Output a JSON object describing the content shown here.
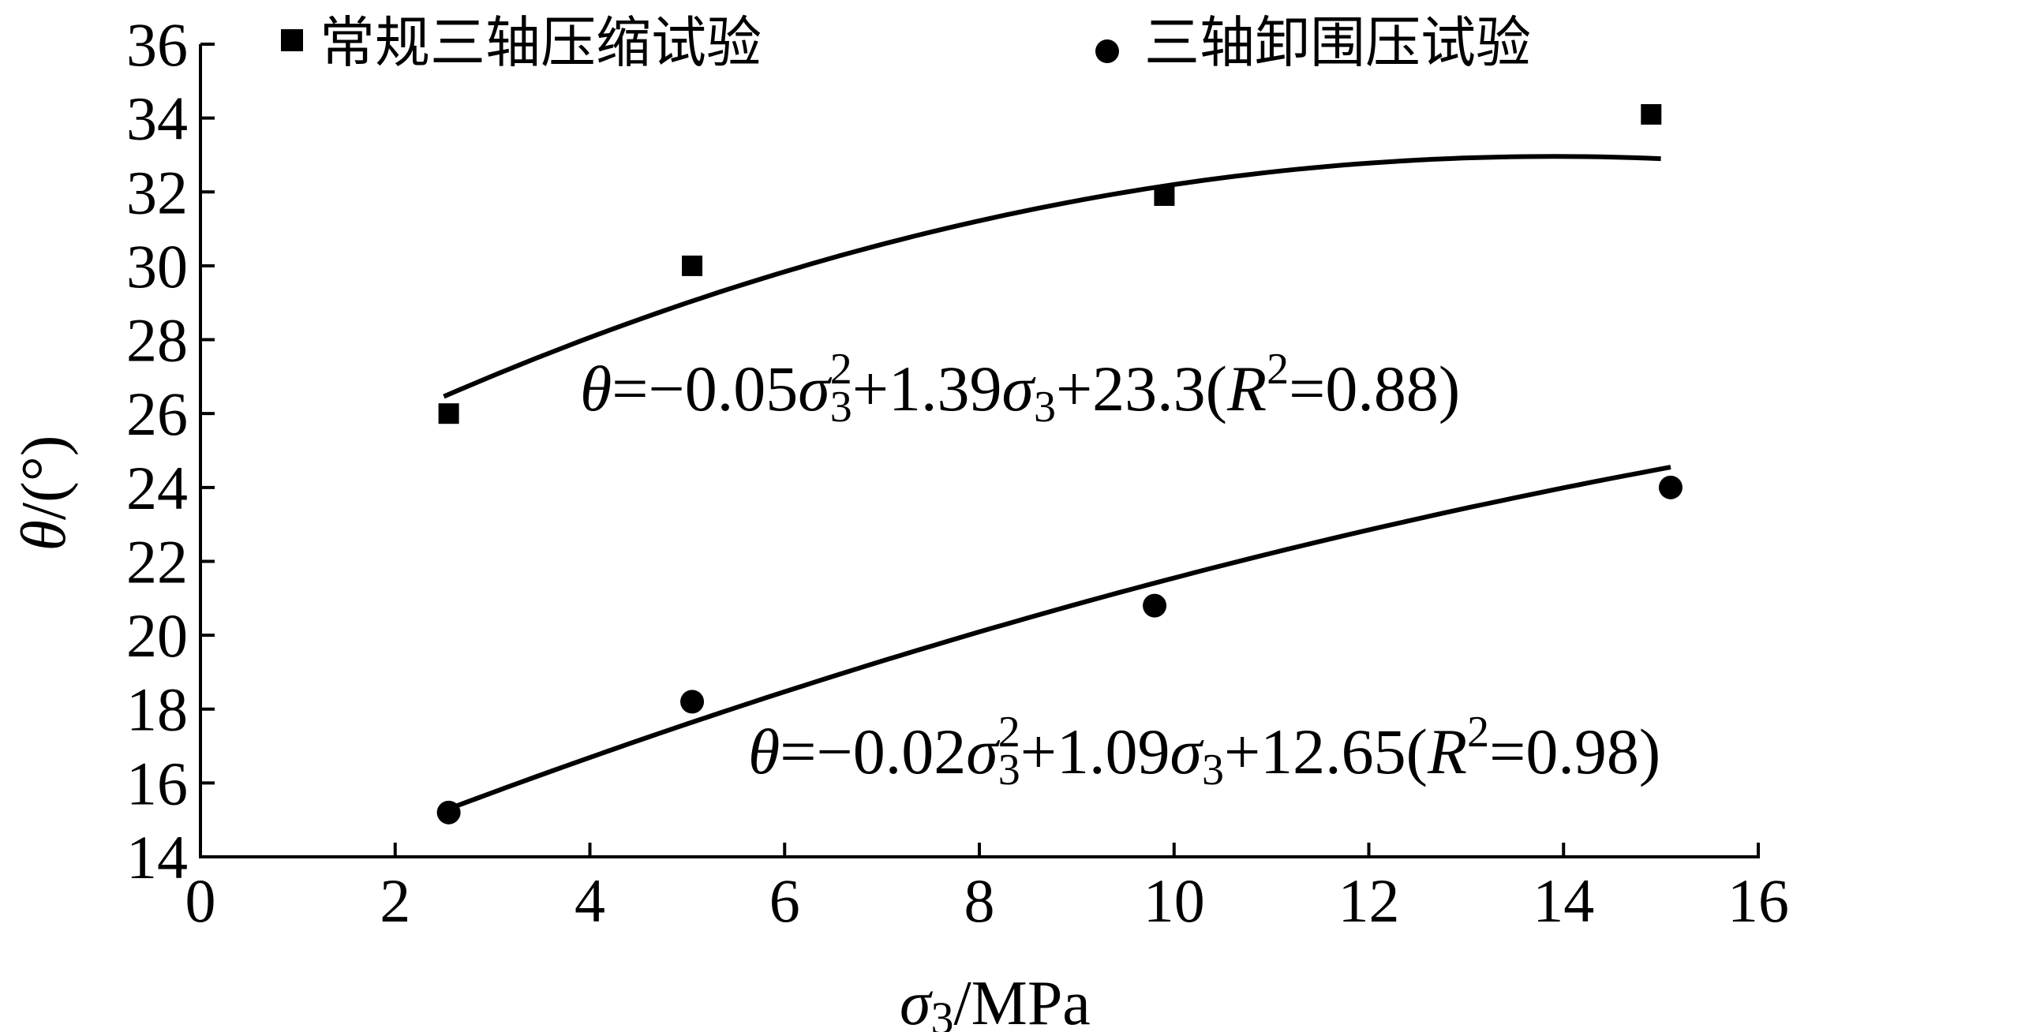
{
  "chart_data": {
    "type": "scatter",
    "xlabel": {
      "symbol": "σ",
      "sub": "3",
      "unit": "/MPa"
    },
    "ylabel": {
      "symbol": "θ",
      "unit": "/(°)"
    },
    "xlim": [
      0,
      16
    ],
    "ylim": [
      14,
      36
    ],
    "xticks": [
      "0",
      "2",
      "4",
      "6",
      "8",
      "10",
      "12",
      "14",
      "16"
    ],
    "yticks": [
      "14",
      "16",
      "18",
      "20",
      "22",
      "24",
      "26",
      "28",
      "30",
      "32",
      "34",
      "36"
    ],
    "grid": false,
    "legend_position": "top",
    "series": [
      {
        "name": "常规三轴压缩试验",
        "marker": "square",
        "color": "#000000",
        "points": [
          [
            2.55,
            26.0
          ],
          [
            5.05,
            30.0
          ],
          [
            9.9,
            31.9
          ],
          [
            14.9,
            34.1
          ]
        ],
        "fit": {
          "coefficients": [
            -0.05,
            1.39,
            23.3
          ],
          "x_range": [
            2.5,
            15.0
          ],
          "equation": {
            "lhs": "θ",
            "eq": "=",
            "a": "−0.05",
            "sym": "σ",
            "sup": "2",
            "sub": "3",
            "b": "+1.39",
            "sym2": "σ",
            "sub2": "3",
            "c": "+23.3(",
            "r": "R",
            "rsup": "2",
            "rval": "=0.88)"
          }
        }
      },
      {
        "name": "三轴卸围压试验",
        "marker": "circle",
        "color": "#000000",
        "points": [
          [
            2.55,
            15.2
          ],
          [
            5.05,
            18.2
          ],
          [
            9.8,
            20.8
          ],
          [
            15.1,
            24.0
          ]
        ],
        "fit": {
          "coefficients": [
            -0.02,
            1.09,
            12.65
          ],
          "x_range": [
            2.5,
            15.1
          ],
          "equation": {
            "lhs": "θ",
            "eq": "=",
            "a": "−0.02",
            "sym": "σ",
            "sup": "2",
            "sub": "3",
            "b": "+1.09",
            "sym2": "σ",
            "sub2": "3",
            "c": "+12.65(",
            "r": "R",
            "rsup": "2",
            "rval": "=0.98)"
          }
        }
      }
    ]
  }
}
